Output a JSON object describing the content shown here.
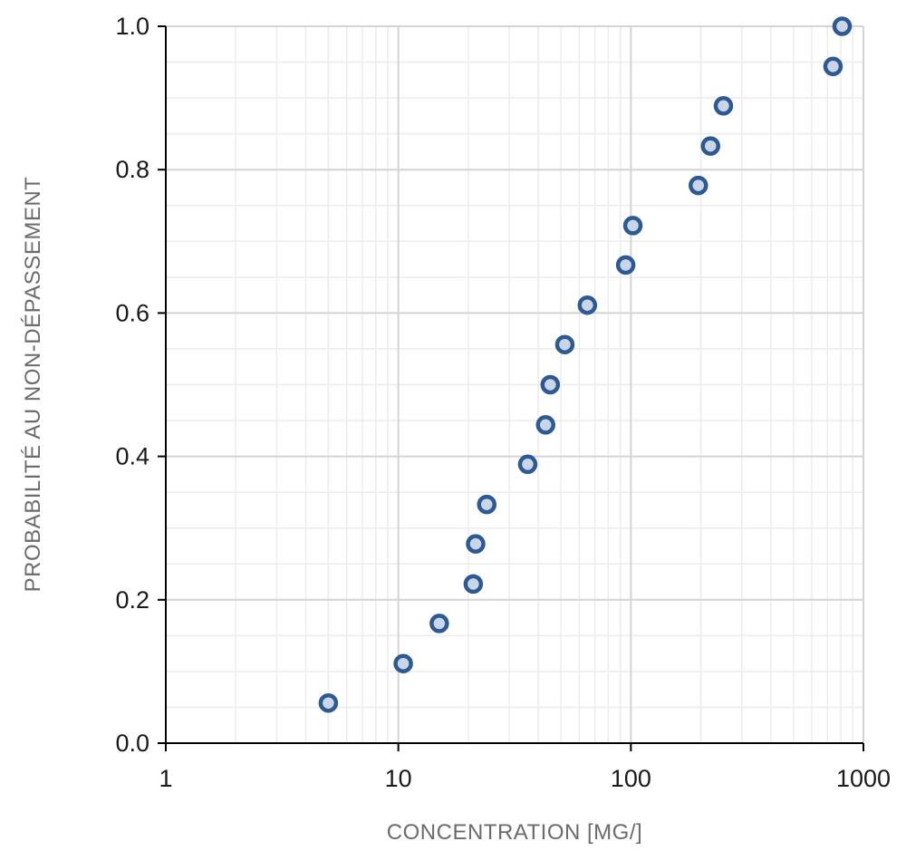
{
  "chart_data": {
    "type": "scatter",
    "title": "",
    "xlabel": "CONCENTRATION [MG/]",
    "ylabel": "PROBABILITÉ AU NON-DÉPASSEMENT",
    "x_scale": "log",
    "xlim": [
      1,
      1000
    ],
    "ylim": [
      0,
      1
    ],
    "x_ticks": [
      1,
      10,
      100,
      1000
    ],
    "x_tick_labels": [
      "1",
      "10",
      "100",
      "1000"
    ],
    "y_ticks": [
      0,
      0.2,
      0.4,
      0.6,
      0.8,
      1.0
    ],
    "y_tick_labels": [
      "0.0",
      "0.2",
      "0.4",
      "0.6",
      "0.8",
      "1.0"
    ],
    "grid": true,
    "legend": "none",
    "marker_color": "#2e5a94",
    "marker_fill": "#c9d6e8",
    "points": [
      {
        "x": 5,
        "y": 0.056
      },
      {
        "x": 10.5,
        "y": 0.111
      },
      {
        "x": 15,
        "y": 0.167
      },
      {
        "x": 21,
        "y": 0.222
      },
      {
        "x": 21.5,
        "y": 0.278
      },
      {
        "x": 24,
        "y": 0.333
      },
      {
        "x": 36,
        "y": 0.389
      },
      {
        "x": 43,
        "y": 0.444
      },
      {
        "x": 45,
        "y": 0.5
      },
      {
        "x": 52,
        "y": 0.556
      },
      {
        "x": 65,
        "y": 0.611
      },
      {
        "x": 95,
        "y": 0.667
      },
      {
        "x": 102,
        "y": 0.722
      },
      {
        "x": 195,
        "y": 0.778
      },
      {
        "x": 220,
        "y": 0.833
      },
      {
        "x": 250,
        "y": 0.889
      },
      {
        "x": 740,
        "y": 0.944
      },
      {
        "x": 810,
        "y": 1.0
      }
    ]
  }
}
